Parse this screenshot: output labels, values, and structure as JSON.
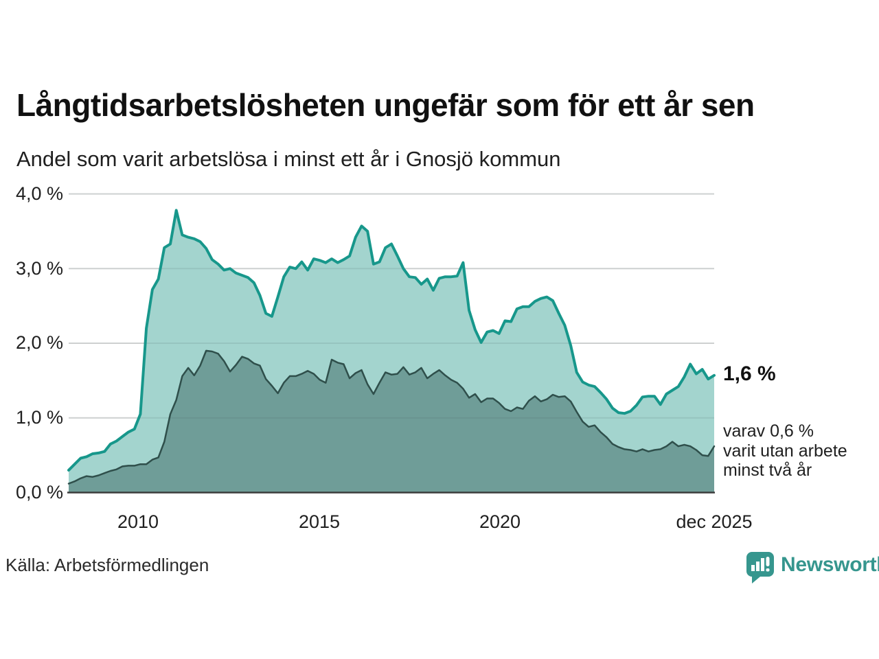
{
  "header": {
    "title": "Långtidsarbetslösheten ungefär som för ett år sen",
    "subtitle": "Andel som varit arbetslösa i minst ett år i Gnosjö kommun"
  },
  "footer": {
    "source": "Källa: Arbetsförmedlingen",
    "brand": "Newsworthy"
  },
  "colors": {
    "primary_line": "#17978b",
    "primary_fill": "#a3d4ce",
    "secondary_line": "#2f4f4b",
    "secondary_fill": "#6f9d98",
    "gridline": "#e2e2e2",
    "axis": "#3c3c3c",
    "brand_teal": "#36968e"
  },
  "chart_data": {
    "type": "area",
    "title": "Långtidsarbetslösheten ungefär som för ett år sen",
    "subtitle": "Andel som varit arbetslösa i minst ett år i Gnosjö kommun",
    "unit": "%",
    "ylim": [
      0,
      4.0
    ],
    "grid": true,
    "x_range_years": [
      2008.08,
      2025.92
    ],
    "y_ticks": [
      {
        "label": "4,0 %",
        "value": 4.0
      },
      {
        "label": "3,0 %",
        "value": 3.0
      },
      {
        "label": "2,0 %",
        "value": 2.0
      },
      {
        "label": "1,0 %",
        "value": 1.0
      },
      {
        "label": "0,0 %",
        "value": 0.0
      }
    ],
    "x_ticks": [
      {
        "label": "2010",
        "year": 2010
      },
      {
        "label": "2015",
        "year": 2015
      },
      {
        "label": "2020",
        "year": 2020
      },
      {
        "label": "dec 2025",
        "year": 2025.92
      }
    ],
    "series": [
      {
        "name": "Andel arbetslösa minst ett år",
        "end_label": "1,6 %",
        "end_value": 1.6,
        "values": [
          0.3,
          0.38,
          0.46,
          0.48,
          0.52,
          0.53,
          0.55,
          0.65,
          0.69,
          0.75,
          0.81,
          0.85,
          1.05,
          2.2,
          2.72,
          2.86,
          3.28,
          3.33,
          3.78,
          3.45,
          3.42,
          3.4,
          3.36,
          3.27,
          3.12,
          3.06,
          2.98,
          3.0,
          2.94,
          2.91,
          2.88,
          2.81,
          2.64,
          2.4,
          2.36,
          2.62,
          2.89,
          3.02,
          3.0,
          3.09,
          2.98,
          3.13,
          3.11,
          3.08,
          3.13,
          3.08,
          3.12,
          3.17,
          3.42,
          3.57,
          3.5,
          3.06,
          3.09,
          3.28,
          3.33,
          3.17,
          3.0,
          2.89,
          2.88,
          2.79,
          2.86,
          2.71,
          2.87,
          2.89,
          2.89,
          2.9,
          3.08,
          2.44,
          2.18,
          2.01,
          2.15,
          2.17,
          2.13,
          2.3,
          2.29,
          2.46,
          2.49,
          2.49,
          2.56,
          2.6,
          2.62,
          2.57,
          2.4,
          2.24,
          1.97,
          1.61,
          1.48,
          1.44,
          1.42,
          1.34,
          1.25,
          1.13,
          1.07,
          1.06,
          1.09,
          1.17,
          1.28,
          1.29,
          1.29,
          1.18,
          1.32,
          1.37,
          1.42,
          1.55,
          1.72,
          1.59,
          1.65,
          1.52,
          1.57
        ]
      },
      {
        "name": "Varav utan arbete minst två år",
        "annotation_lines": [
          "varav 0,6 %",
          "varit utan arbete",
          "minst två år"
        ],
        "end_value": 0.6,
        "values": [
          0.12,
          0.15,
          0.19,
          0.22,
          0.21,
          0.23,
          0.26,
          0.29,
          0.31,
          0.35,
          0.36,
          0.36,
          0.38,
          0.38,
          0.44,
          0.47,
          0.68,
          1.05,
          1.24,
          1.56,
          1.67,
          1.57,
          1.7,
          1.9,
          1.89,
          1.86,
          1.76,
          1.62,
          1.71,
          1.82,
          1.79,
          1.73,
          1.7,
          1.52,
          1.43,
          1.33,
          1.47,
          1.56,
          1.56,
          1.59,
          1.63,
          1.59,
          1.51,
          1.47,
          1.78,
          1.74,
          1.72,
          1.53,
          1.6,
          1.64,
          1.45,
          1.32,
          1.47,
          1.61,
          1.58,
          1.59,
          1.68,
          1.58,
          1.61,
          1.67,
          1.53,
          1.59,
          1.64,
          1.57,
          1.51,
          1.47,
          1.39,
          1.27,
          1.32,
          1.21,
          1.26,
          1.26,
          1.2,
          1.12,
          1.09,
          1.14,
          1.12,
          1.23,
          1.29,
          1.22,
          1.25,
          1.31,
          1.28,
          1.29,
          1.22,
          1.08,
          0.95,
          0.88,
          0.9,
          0.81,
          0.74,
          0.65,
          0.61,
          0.58,
          0.57,
          0.55,
          0.58,
          0.55,
          0.57,
          0.58,
          0.62,
          0.68,
          0.62,
          0.64,
          0.62,
          0.57,
          0.5,
          0.49,
          0.62
        ]
      }
    ],
    "legend_position": "none",
    "annotations_right": {
      "primary": "1,6 %",
      "secondary": "varav 0,6 %\nvarit utan arbete\nminst två år"
    }
  }
}
